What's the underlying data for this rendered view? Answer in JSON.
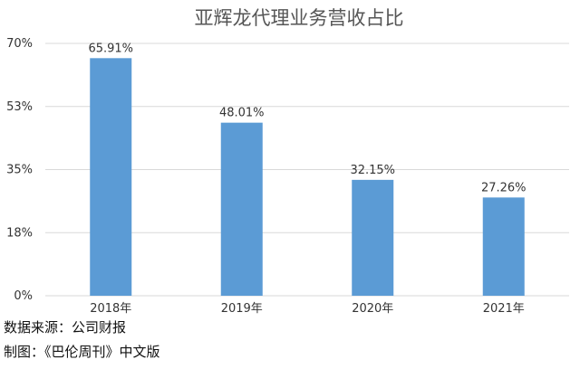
{
  "chart_data": {
    "type": "bar",
    "title": "亚辉龙代理业务营收占比",
    "categories": [
      "2018年",
      "2019年",
      "2020年",
      "2021年"
    ],
    "values": [
      65.91,
      48.01,
      32.15,
      27.26
    ],
    "value_labels": [
      "65.91%",
      "48.01%",
      "32.15%",
      "27.26%"
    ],
    "y_ticks": [
      0,
      17.5,
      35,
      52.5,
      70
    ],
    "y_tick_labels": [
      "0%",
      "18%",
      "35%",
      "53%",
      "70%"
    ],
    "ylim": [
      0,
      70
    ],
    "grid": true,
    "legend": "none",
    "bar_color": "#5b9bd5",
    "grid_color": "#d9d9d9"
  },
  "footer": {
    "source": "数据来源：公司财报",
    "credit": "制图：《巴伦周刊》中文版"
  }
}
